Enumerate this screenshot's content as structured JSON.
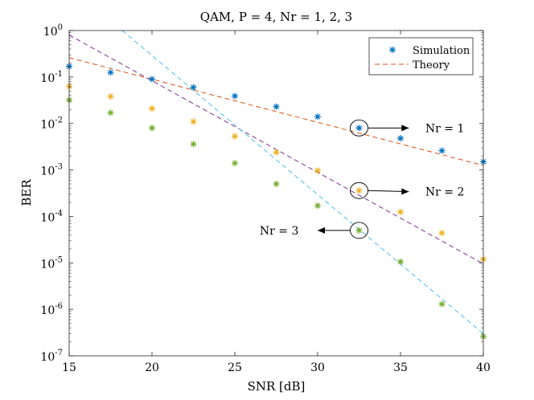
{
  "chart_data": {
    "type": "scatter",
    "title": "QAM, P = 4, Nr = 1, 2, 3",
    "xlabel": "SNR [dB]",
    "ylabel": "BER",
    "xlim": [
      15,
      40
    ],
    "ylim": [
      1e-07,
      1
    ],
    "yscale": "log",
    "x_ticks": [
      15,
      20,
      25,
      30,
      35,
      40
    ],
    "y_ticks": [
      {
        "value": 1,
        "mantissa": "10",
        "exponent": "0"
      },
      {
        "value": 0.1,
        "mantissa": "10",
        "exponent": "-1"
      },
      {
        "value": 0.01,
        "mantissa": "10",
        "exponent": "-2"
      },
      {
        "value": 0.001,
        "mantissa": "10",
        "exponent": "-3"
      },
      {
        "value": 0.0001,
        "mantissa": "10",
        "exponent": "-4"
      },
      {
        "value": 1e-05,
        "mantissa": "10",
        "exponent": "-5"
      },
      {
        "value": 1e-06,
        "mantissa": "10",
        "exponent": "-6"
      },
      {
        "value": 1e-07,
        "mantissa": "10",
        "exponent": "-7"
      }
    ],
    "legend": {
      "position": "top-right",
      "entries": [
        {
          "label": "Simulation",
          "marker": "asterisk",
          "color": "#0072BD"
        },
        {
          "label": "Theory",
          "line": "dashed",
          "color": "#D95319"
        }
      ]
    },
    "series": [
      {
        "name": "Simulation Nr = 1",
        "kind": "markers",
        "color": "#0072BD",
        "x": [
          15,
          17.5,
          20,
          22.5,
          25,
          27.5,
          30,
          32.5,
          35,
          37.5,
          40
        ],
        "y": [
          0.17,
          0.125,
          0.09,
          0.06,
          0.039,
          0.023,
          0.014,
          0.008,
          0.0048,
          0.0026,
          0.0015
        ]
      },
      {
        "name": "Simulation Nr = 2",
        "kind": "markers",
        "color": "#EDB120",
        "x": [
          15,
          17.5,
          20,
          22.5,
          25,
          27.5,
          30,
          32.5,
          35,
          37.5,
          40
        ],
        "y": [
          0.063,
          0.038,
          0.021,
          0.011,
          0.0053,
          0.0024,
          0.00097,
          0.00036,
          0.000125,
          4.4e-05,
          1.2e-05
        ]
      },
      {
        "name": "Simulation Nr = 3",
        "kind": "markers",
        "color": "#77AC30",
        "x": [
          15,
          17.5,
          20,
          22.5,
          25,
          27.5,
          30,
          32.5,
          35,
          37.5,
          40
        ],
        "y": [
          0.032,
          0.017,
          0.008,
          0.0036,
          0.0014,
          0.0005,
          0.00017,
          5e-05,
          1.06e-05,
          1.3e-06,
          2.6e-07
        ]
      },
      {
        "name": "Theory Nr = 1",
        "kind": "line",
        "color": "#D95319",
        "x": [
          15,
          40
        ],
        "y": [
          0.26,
          0.00125
        ]
      },
      {
        "name": "Theory Nr = 2",
        "kind": "line",
        "color": "#7E2F8E",
        "x": [
          15,
          40
        ],
        "y": [
          0.8,
          9.5e-06
        ]
      },
      {
        "name": "Theory Nr = 3",
        "kind": "line",
        "color": "#4DBEEE",
        "x": [
          18.2,
          40
        ],
        "y": [
          1.0,
          3e-07
        ]
      }
    ],
    "annotations": [
      {
        "text": "Nr = 1",
        "circle": {
          "x": 32.5,
          "y": 0.008
        },
        "arrow_direction": "right",
        "arrow_to": {
          "x": 35.5,
          "y": 0.008
        },
        "text_at": {
          "x": 36.5,
          "y": 0.008
        }
      },
      {
        "text": "Nr = 2",
        "circle": {
          "x": 32.5,
          "y": 0.00036
        },
        "arrow_direction": "right",
        "arrow_to": {
          "x": 35.5,
          "y": 0.00034
        },
        "text_at": {
          "x": 36.5,
          "y": 0.00034
        }
      },
      {
        "text": "Nr = 3",
        "circle": {
          "x": 32.5,
          "y": 5e-05
        },
        "arrow_direction": "left",
        "arrow_to": {
          "x": 30.0,
          "y": 5e-05
        },
        "text_at": {
          "x": 26.5,
          "y": 5e-05
        }
      }
    ]
  }
}
